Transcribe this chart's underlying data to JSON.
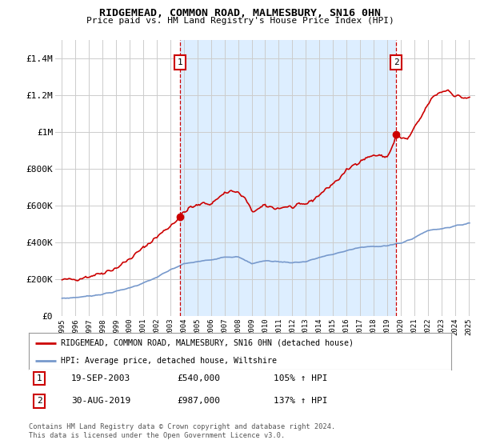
{
  "title": "RIDGEMEAD, COMMON ROAD, MALMESBURY, SN16 0HN",
  "subtitle": "Price paid vs. HM Land Registry's House Price Index (HPI)",
  "red_label": "RIDGEMEAD, COMMON ROAD, MALMESBURY, SN16 0HN (detached house)",
  "blue_label": "HPI: Average price, detached house, Wiltshire",
  "annotation1_date": "19-SEP-2003",
  "annotation1_price": "£540,000",
  "annotation1_hpi": "105% ↑ HPI",
  "annotation1_year": 2003.72,
  "annotation1_value": 540000,
  "annotation2_date": "30-AUG-2019",
  "annotation2_price": "£987,000",
  "annotation2_hpi": "137% ↑ HPI",
  "annotation2_year": 2019.66,
  "annotation2_value": 987000,
  "ylim": [
    0,
    1500000
  ],
  "xlim": [
    1994.5,
    2025.5
  ],
  "yticks": [
    0,
    200000,
    400000,
    600000,
    800000,
    1000000,
    1200000,
    1400000
  ],
  "ytick_labels": [
    "£0",
    "£200K",
    "£400K",
    "£600K",
    "£800K",
    "£1M",
    "£1.2M",
    "£1.4M"
  ],
  "background_color": "#ffffff",
  "plot_bg_color": "#ffffff",
  "shade_color": "#ddeeff",
  "grid_color": "#cccccc",
  "red_color": "#cc0000",
  "blue_color": "#7799cc",
  "footnote": "Contains HM Land Registry data © Crown copyright and database right 2024.\nThis data is licensed under the Open Government Licence v3.0."
}
